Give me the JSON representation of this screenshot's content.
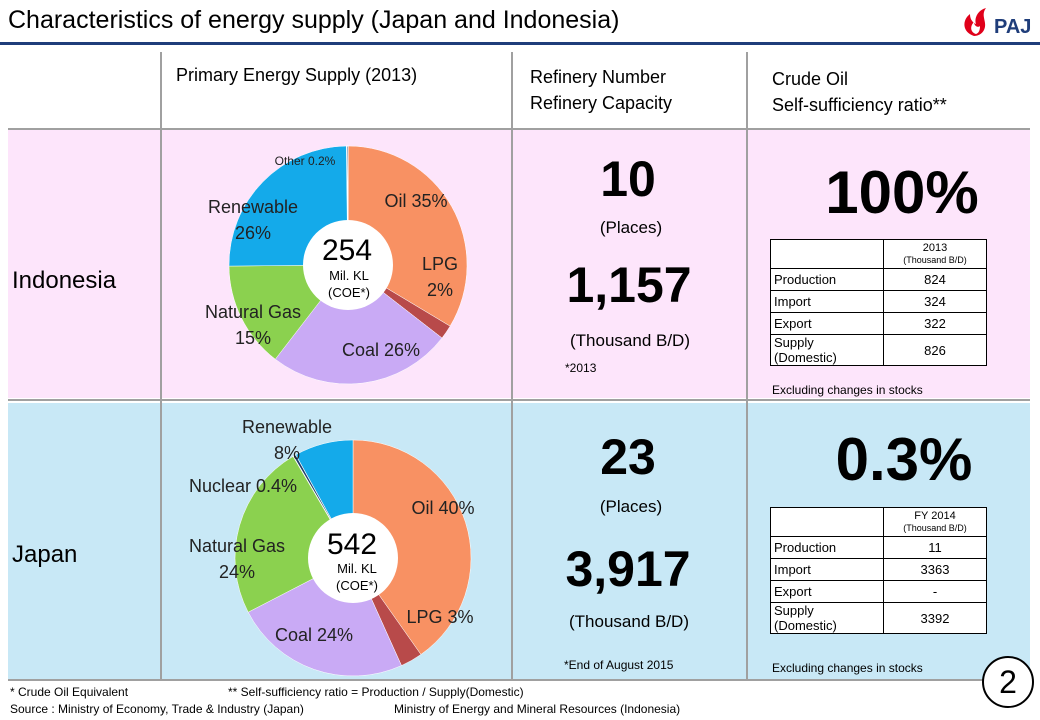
{
  "title": "Characteristics of energy supply (Japan and Indonesia)",
  "logo_text": "PAJ",
  "columns": {
    "primary": "Primary Energy Supply (2013)",
    "refinery": [
      "Refinery Number",
      "Refinery Capacity"
    ],
    "crude": [
      "Crude Oil",
      "Self-sufficiency ratio**"
    ]
  },
  "indonesia": {
    "label": "Indonesia",
    "pie_total": "254",
    "pie_unit": [
      "Mil. KL",
      "(COE*)"
    ],
    "refinery_number": "10",
    "refinery_number_unit": "(Places)",
    "refinery_capacity": "1,157",
    "refinery_capacity_unit": "(Thousand B/D)",
    "refinery_note": "*2013",
    "self_sufficiency": "100%",
    "table": {
      "header": "2013",
      "header_unit": "(Thousand B/D)",
      "rows": [
        {
          "label": "Production",
          "value": "824"
        },
        {
          "label": "Import",
          "value": "324"
        },
        {
          "label": "Export",
          "value": "322"
        },
        {
          "label": "Supply (Domestic)",
          "value": "826"
        }
      ],
      "note": "Excluding changes in stocks"
    }
  },
  "japan": {
    "label": "Japan",
    "pie_total": "542",
    "pie_unit": [
      "Mil. KL",
      "(COE*)"
    ],
    "refinery_number": "23",
    "refinery_number_unit": "(Places)",
    "refinery_capacity": "3,917",
    "refinery_capacity_unit": "(Thousand B/D)",
    "refinery_note": "*End of August 2015",
    "self_sufficiency": "0.3%",
    "table": {
      "header": "FY 2014",
      "header_unit": "(Thousand B/D)",
      "rows": [
        {
          "label": "Production",
          "value": "11"
        },
        {
          "label": "Import",
          "value": "3363"
        },
        {
          "label": "Export",
          "value": "-"
        },
        {
          "label": "Supply (Domestic)",
          "value": "3392"
        }
      ],
      "note": "Excluding changes in stocks"
    }
  },
  "chart_data": [
    {
      "type": "pie",
      "title": "",
      "categories": [
        "Oil",
        "LPG",
        "Coal",
        "Natural Gas",
        "Renewable",
        "Other"
      ],
      "values": [
        35,
        2,
        26,
        15,
        26,
        0.2
      ],
      "labels": [
        [
          "Oil  35%"
        ],
        [
          "LPG",
          "2%"
        ],
        [
          "Coal  26%"
        ],
        [
          "Natural Gas",
          "15%"
        ],
        [
          "Renewable",
          "26%"
        ],
        [
          "Other 0.2%"
        ]
      ],
      "colors": [
        "#f89163",
        "#b84a4a",
        "#c9aaf5",
        "#8bd14f",
        "#14aaea",
        "#1f3f6b"
      ]
    },
    {
      "type": "pie",
      "title": "",
      "categories": [
        "Oil",
        "LPG",
        "Coal",
        "Natural Gas",
        "Nuclear",
        "Renewable"
      ],
      "values": [
        40,
        3,
        24,
        24,
        0.4,
        8
      ],
      "labels": [
        [
          "Oil  40%"
        ],
        [
          "LPG  3%"
        ],
        [
          "Coal  24%"
        ],
        [
          "Natural Gas",
          "24%"
        ],
        [
          "Nuclear 0.4%"
        ],
        [
          "Renewable",
          "8%"
        ]
      ],
      "colors": [
        "#f89163",
        "#b84a4a",
        "#c9aaf5",
        "#8bd14f",
        "#1f3f6b",
        "#14aaea"
      ]
    }
  ],
  "footnotes": {
    "coe": "* Crude Oil Equivalent",
    "ratio": "** Self-sufficiency ratio = Production / Supply(Domestic)",
    "source_jp": "Source : Ministry of Economy, Trade & Industry (Japan)",
    "source_id": "Ministry of Energy and Mineral Resources  (Indonesia)"
  },
  "page_number": "2"
}
